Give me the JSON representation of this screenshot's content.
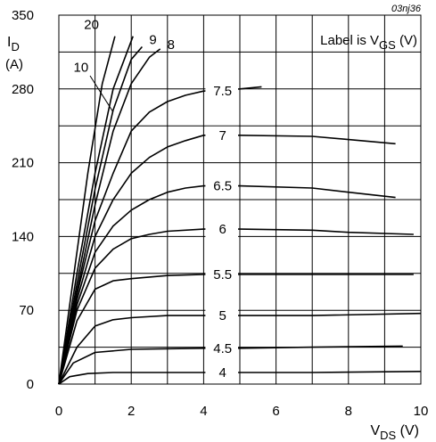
{
  "chart_data": {
    "type": "line",
    "figure_code": "03nj36",
    "legend_note": "Label is V",
    "legend_note_sub": "GS",
    "legend_note_unit": " (V)",
    "xlabel": "V",
    "xlabel_sub": "DS",
    "xlabel_unit": " (V)",
    "ylabel": "I",
    "ylabel_sub": "D",
    "ylabel_unit": "(A)",
    "xlim": [
      0,
      10
    ],
    "ylim": [
      0,
      350
    ],
    "xticks": [
      0,
      2,
      4,
      6,
      8,
      10
    ],
    "yticks": [
      0,
      70,
      140,
      210,
      280,
      350
    ],
    "grid": true,
    "series": [
      {
        "name": "4",
        "x": [
          0,
          0.3,
          0.8,
          1.5,
          4,
          5,
          7,
          10
        ],
        "y": [
          0,
          7,
          10,
          11,
          11,
          11,
          11,
          12
        ]
      },
      {
        "name": "4.5",
        "x": [
          0,
          0.4,
          1,
          2,
          4,
          5,
          7,
          9.5
        ],
        "y": [
          0,
          20,
          30,
          33,
          34,
          34,
          35,
          36
        ]
      },
      {
        "name": "5",
        "x": [
          0,
          0.5,
          1,
          1.5,
          2,
          3,
          4,
          5,
          7,
          10
        ],
        "y": [
          0,
          35,
          55,
          61,
          63,
          65,
          65,
          65,
          65,
          67
        ]
      },
      {
        "name": "5.5",
        "x": [
          0,
          0.5,
          1,
          1.5,
          2,
          3,
          4,
          5,
          7,
          9.8
        ],
        "y": [
          0,
          60,
          90,
          98,
          100,
          103,
          104,
          104,
          104,
          104
        ]
      },
      {
        "name": "6",
        "x": [
          0,
          0.5,
          1,
          1.5,
          2,
          2.5,
          3,
          4,
          5,
          7,
          8,
          9.8
        ],
        "y": [
          0,
          70,
          110,
          128,
          138,
          142,
          145,
          147,
          147,
          146,
          144,
          142
        ]
      },
      {
        "name": "6.5",
        "x": [
          0,
          0.5,
          1,
          1.5,
          2,
          2.5,
          3,
          3.5,
          4,
          5,
          7,
          8,
          9.3
        ],
        "y": [
          0,
          75,
          125,
          150,
          165,
          175,
          182,
          186,
          188,
          188,
          186,
          182,
          177
        ]
      },
      {
        "name": "7",
        "x": [
          0,
          0.5,
          1,
          1.5,
          2,
          2.5,
          3,
          3.5,
          4,
          5,
          7,
          8,
          9.3
        ],
        "y": [
          0,
          80,
          140,
          175,
          200,
          215,
          225,
          231,
          236,
          236,
          235,
          232,
          228
        ]
      },
      {
        "name": "7.5",
        "x": [
          0,
          0.5,
          1,
          1.5,
          2,
          2.5,
          3,
          3.5,
          4,
          5,
          5.6
        ],
        "y": [
          0,
          85,
          155,
          200,
          240,
          258,
          268,
          274,
          278,
          280,
          282
        ]
      },
      {
        "name": "8",
        "x": [
          0,
          0.5,
          1,
          1.5,
          2,
          2.5,
          2.8
        ],
        "y": [
          0,
          88,
          170,
          240,
          285,
          310,
          318
        ]
      },
      {
        "name": "9",
        "x": [
          0,
          0.5,
          1,
          1.5,
          2,
          2.3
        ],
        "y": [
          0,
          95,
          185,
          260,
          308,
          320
        ]
      },
      {
        "name": "10",
        "x": [
          0,
          0.5,
          1,
          1.5,
          2.05
        ],
        "y": [
          0,
          105,
          200,
          280,
          330
        ]
      },
      {
        "name": "20",
        "x": [
          0,
          0.4,
          0.8,
          1.2,
          1.55
        ],
        "y": [
          0,
          100,
          200,
          285,
          330
        ]
      }
    ]
  }
}
